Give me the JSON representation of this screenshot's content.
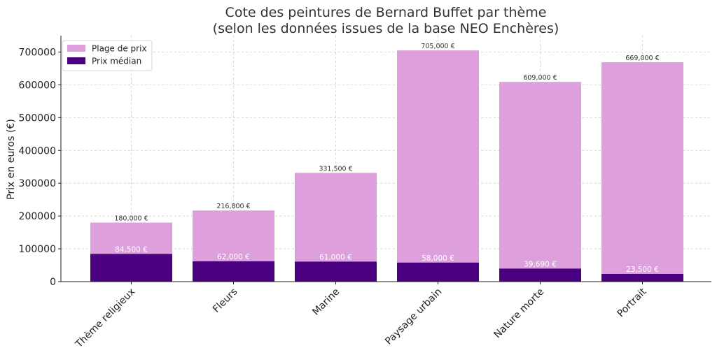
{
  "chart_data": {
    "type": "bar",
    "title_lines": [
      "Cote des peintures de Bernard Buffet par thème",
      "(selon les données issues de la base NEO Enchères)"
    ],
    "xlabel": "",
    "ylabel": "Prix en euros (€)",
    "ylim": [
      0,
      750000
    ],
    "yticks": [
      0,
      100000,
      200000,
      300000,
      400000,
      500000,
      600000,
      700000
    ],
    "ytick_labels": [
      "0",
      "100000",
      "200000",
      "300000",
      "400000",
      "500000",
      "600000",
      "700000"
    ],
    "grid": true,
    "legend_position": "top-left",
    "categories": [
      "Thème religieux",
      "Fleurs",
      "Marine",
      "Paysage urbain",
      "Nature morte",
      "Portrait"
    ],
    "series": [
      {
        "name": "Plage de prix",
        "color": "#DDA0DD",
        "values": [
          180000,
          216800,
          331500,
          705000,
          609000,
          669000
        ],
        "labels": [
          "180,000 €",
          "216,800 €",
          "331,500 €",
          "705,000 €",
          "609,000 €",
          "669,000 €"
        ]
      },
      {
        "name": "Prix médian",
        "color": "#4B0082",
        "values": [
          84500,
          62000,
          61000,
          58000,
          39690,
          23500
        ],
        "labels": [
          "84,500 €",
          "62,000 €",
          "61,000 €",
          "58,000 €",
          "39,690 €",
          "23,500 €"
        ]
      }
    ]
  }
}
